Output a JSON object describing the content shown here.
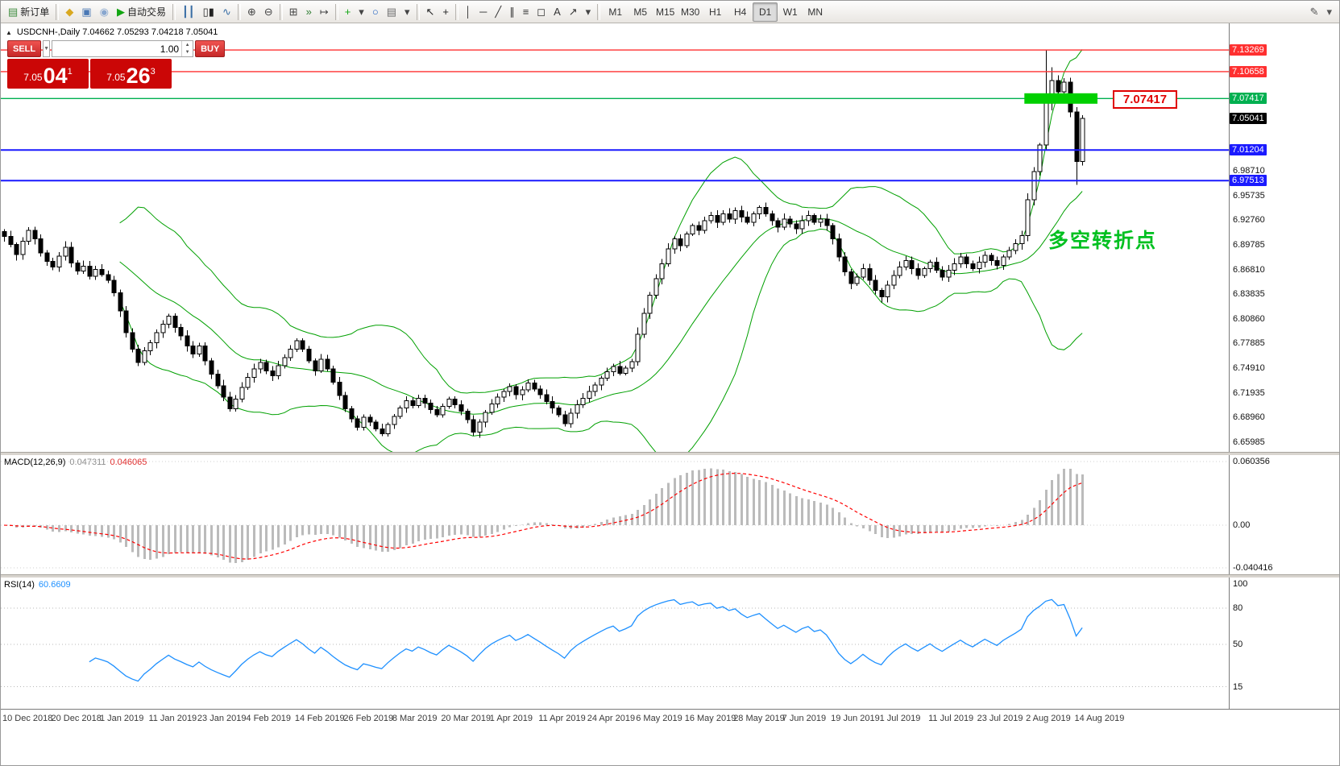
{
  "theme": {
    "bollinger": "#00A000",
    "candle_up_fill": "#FFFFFF",
    "candle_down_fill": "#000000",
    "candle_border": "#000000",
    "macd_hist": "#BBBBBB",
    "macd_signal": "#FF0000",
    "rsi_line": "#1E90FF",
    "res_line": "#FF3030",
    "sup_line": "#1A1AFF",
    "pivot_line": "#00B050",
    "pivot_fill": "#00D000",
    "tag_current_bg": "#000000",
    "annotation_green": "#00C020",
    "callout_red": "#E00000",
    "panel_red": "#CB0606"
  },
  "toolbar": {
    "items": [
      {
        "kind": "button",
        "name": "new-order-button",
        "glyph": "▤",
        "glyph_color": "#3c8b3c",
        "label": "新订单"
      },
      {
        "kind": "sep"
      },
      {
        "kind": "icon",
        "name": "market-icon",
        "glyph": "◆",
        "glyph_color": "#d9a820"
      },
      {
        "kind": "icon",
        "name": "charts-icon",
        "glyph": "▣",
        "glyph_color": "#4a78b5"
      },
      {
        "kind": "icon",
        "name": "community-icon",
        "glyph": "◉",
        "glyph_color": "#89a7cf"
      },
      {
        "kind": "button",
        "name": "autotrading-button",
        "glyph": "▶",
        "glyph_color": "#12a512",
        "label": "自动交易"
      },
      {
        "kind": "sep"
      },
      {
        "kind": "icon",
        "name": "ohlc-bars-chart-icon",
        "glyph": "┃┃",
        "glyph_color": "#3a6ea5"
      },
      {
        "kind": "icon",
        "name": "candlestick-chart-icon",
        "glyph": "▯▮",
        "glyph_color": "#222222"
      },
      {
        "kind": "icon",
        "name": "line-chart-icon",
        "glyph": "∿",
        "glyph_color": "#3a6ea5"
      },
      {
        "kind": "sep"
      },
      {
        "kind": "icon",
        "name": "zoom-in-icon",
        "glyph": "⊕",
        "glyph_color": "#444444"
      },
      {
        "kind": "icon",
        "name": "zoom-out-icon",
        "glyph": "⊖",
        "glyph_color": "#444444"
      },
      {
        "kind": "sep"
      },
      {
        "kind": "icon",
        "name": "tile-windows-icon",
        "glyph": "⊞",
        "glyph_color": "#444444"
      },
      {
        "kind": "icon",
        "name": "auto-scroll-icon",
        "glyph": "»",
        "glyph_color": "#2f7d32"
      },
      {
        "kind": "icon",
        "name": "chart-shift-icon",
        "glyph": "↦",
        "glyph_color": "#444444"
      },
      {
        "kind": "sep"
      },
      {
        "kind": "icon",
        "name": "add-indicator-icon",
        "glyph": "+",
        "glyph_color": "#12a512"
      },
      {
        "kind": "icon",
        "name": "indicator-list-dropdown-icon",
        "glyph": "▾",
        "glyph_color": "#444444"
      },
      {
        "kind": "icon",
        "name": "refresh-icon",
        "glyph": "○",
        "glyph_color": "#2060c0"
      },
      {
        "kind": "icon",
        "name": "templates-icon",
        "glyph": "▤",
        "glyph_color": "#6b6b6b"
      },
      {
        "kind": "icon",
        "name": "templates-dropdown-icon",
        "glyph": "▾",
        "glyph_color": "#444444"
      },
      {
        "kind": "sep"
      },
      {
        "kind": "icon",
        "name": "cursor-icon",
        "glyph": "↖",
        "glyph_color": "#222222"
      },
      {
        "kind": "icon",
        "name": "crosshair-icon",
        "glyph": "+",
        "glyph_color": "#222222"
      },
      {
        "kind": "sep"
      },
      {
        "kind": "icon",
        "name": "vertical-line-tool-icon",
        "glyph": "│",
        "glyph_color": "#333333"
      },
      {
        "kind": "icon",
        "name": "horizontal-line-tool-icon",
        "glyph": "─",
        "glyph_color": "#333333"
      },
      {
        "kind": "icon",
        "name": "trendline-tool-icon",
        "glyph": "╱",
        "glyph_color": "#333333"
      },
      {
        "kind": "icon",
        "name": "channel-tool-icon",
        "glyph": "∥",
        "glyph_color": "#333333"
      },
      {
        "kind": "icon",
        "name": "fibonacci-tool-icon",
        "glyph": "≡",
        "glyph_color": "#333333"
      },
      {
        "kind": "icon",
        "name": "shapes-tool-icon",
        "glyph": "◻",
        "glyph_color": "#333333"
      },
      {
        "kind": "icon",
        "name": "text-tool-icon",
        "glyph": "A",
        "glyph_color": "#333333"
      },
      {
        "kind": "icon",
        "name": "arrows-tool-icon",
        "glyph": "↗",
        "glyph_color": "#333333"
      },
      {
        "kind": "icon",
        "name": "objects-dropdown-icon",
        "glyph": "▾",
        "glyph_color": "#444444"
      },
      {
        "kind": "sep"
      },
      {
        "kind": "tf",
        "name": "timeframe-m1",
        "label": "M1"
      },
      {
        "kind": "tf",
        "name": "timeframe-m5",
        "label": "M5"
      },
      {
        "kind": "tf",
        "name": "timeframe-m15",
        "label": "M15"
      },
      {
        "kind": "tf",
        "name": "timeframe-m30",
        "label": "M30"
      },
      {
        "kind": "tf",
        "name": "timeframe-h1",
        "label": "H1"
      },
      {
        "kind": "tf",
        "name": "timeframe-h4",
        "label": "H4"
      },
      {
        "kind": "tf",
        "name": "timeframe-d1",
        "label": "D1",
        "active": true
      },
      {
        "kind": "tf",
        "name": "timeframe-w1",
        "label": "W1"
      },
      {
        "kind": "tf",
        "name": "timeframe-mn",
        "label": "MN"
      },
      {
        "kind": "spacer"
      },
      {
        "kind": "icon",
        "name": "edit-icon",
        "glyph": "✎",
        "glyph_color": "#555555"
      },
      {
        "kind": "icon",
        "name": "window-menu-icon",
        "glyph": "▾",
        "glyph_color": "#555555"
      }
    ]
  },
  "symbol_header": {
    "toggle_glyph": "▲"
  },
  "trade_panel": {
    "sell_label": "SELL",
    "buy_label": "BUY",
    "volume": "1.00",
    "sell_price_main": "7.05",
    "sell_price_pips": "04",
    "sell_price_sup": "1",
    "buy_price_main": "7.05",
    "buy_price_pips": "26",
    "buy_price_sup": "3"
  },
  "annotation": {
    "text": "多空转折点"
  },
  "callout": {
    "text": "7.07417"
  },
  "chart_data": [
    {
      "id": "price",
      "type": "candlestick",
      "symbol": "USDCNH-",
      "timeframe": "Daily",
      "header": "USDCNH-,Daily  7.04662 7.05293 7.04218 7.05041",
      "current_bar": {
        "open": 7.04662,
        "high": 7.05293,
        "low": 7.04218,
        "close": 7.05041
      },
      "bid": 7.05041,
      "ask": 7.05263,
      "visible_price_range": [
        6.64,
        7.165
      ],
      "overlays": {
        "bollinger": {
          "period": 20,
          "deviation": 2
        }
      },
      "closes": [
        6.908,
        6.898,
        6.886,
        6.902,
        6.915,
        6.905,
        6.888,
        6.878,
        6.871,
        6.884,
        6.895,
        6.876,
        6.866,
        6.872,
        6.86,
        6.868,
        6.862,
        6.855,
        6.84,
        6.818,
        6.792,
        6.772,
        6.756,
        6.77,
        6.78,
        6.792,
        6.802,
        6.812,
        6.798,
        6.788,
        6.776,
        6.766,
        6.776,
        6.758,
        6.742,
        6.728,
        6.714,
        6.7,
        6.712,
        6.726,
        6.738,
        6.748,
        6.756,
        6.746,
        6.74,
        6.752,
        6.762,
        6.772,
        6.782,
        6.772,
        6.758,
        6.746,
        6.76,
        6.748,
        6.732,
        6.716,
        6.7,
        6.688,
        6.678,
        6.69,
        6.684,
        6.676,
        6.67,
        6.681,
        6.691,
        6.701,
        6.71,
        6.704,
        6.713,
        6.707,
        6.699,
        6.693,
        6.703,
        6.712,
        6.705,
        6.697,
        6.687,
        6.672,
        6.684,
        6.696,
        6.706,
        6.714,
        6.721,
        6.727,
        6.717,
        6.723,
        6.731,
        6.724,
        6.717,
        6.709,
        6.701,
        6.693,
        6.682,
        6.695,
        6.705,
        6.713,
        6.721,
        6.729,
        6.737,
        6.745,
        6.751,
        6.743,
        6.749,
        6.757,
        6.79,
        6.815,
        6.837,
        6.857,
        6.875,
        6.893,
        6.905,
        6.897,
        6.911,
        6.921,
        6.915,
        6.927,
        6.933,
        6.925,
        6.935,
        6.929,
        6.939,
        6.931,
        6.925,
        6.935,
        6.943,
        6.935,
        6.927,
        6.919,
        6.929,
        6.923,
        6.917,
        6.927,
        6.933,
        6.925,
        6.929,
        6.921,
        6.905,
        6.883,
        6.865,
        6.851,
        6.859,
        6.869,
        6.855,
        6.843,
        6.835,
        6.849,
        6.861,
        6.871,
        6.879,
        6.869,
        6.861,
        6.869,
        6.877,
        6.867,
        6.859,
        6.867,
        6.875,
        6.883,
        6.875,
        6.869,
        6.877,
        6.885,
        6.879,
        6.873,
        6.883,
        6.891,
        6.899,
        6.909,
        6.952,
        6.986,
        7.018,
        7.072,
        7.096,
        7.082,
        7.094,
        7.058,
        6.998,
        7.05
      ],
      "wick_overrides": {
        "104": [
          6.798,
          6.752
        ],
        "168": [
          6.96,
          6.902
        ],
        "171": [
          7.132,
          7.012
        ],
        "172": [
          7.112,
          7.06
        ],
        "176": [
          7.064,
          6.97
        ]
      },
      "hlines": [
        {
          "name": "resistance-line-1",
          "price": 7.13269,
          "color_key": "res_line",
          "width": 1.4
        },
        {
          "name": "resistance-line-2",
          "price": 7.10658,
          "color_key": "res_line",
          "width": 1.4
        },
        {
          "name": "pivot-line",
          "price": 7.07417,
          "color_key": "pivot_line",
          "width": 1.4
        },
        {
          "name": "support-line-1",
          "price": 7.01204,
          "color_key": "sup_line",
          "width": 2
        },
        {
          "name": "support-line-2",
          "price": 6.97513,
          "color_key": "sup_line",
          "width": 2
        }
      ],
      "pivot_segment": {
        "price": 7.07417,
        "from_index": 167.5,
        "to_index": 179.5
      },
      "axis_plain_labels": [
        "6.98710",
        "6.95735",
        "6.92760",
        "6.89785",
        "6.86810",
        "6.83835",
        "6.80860",
        "6.77885",
        "6.74910",
        "6.71935",
        "6.68960",
        "6.65985"
      ],
      "axis_tags": [
        {
          "text": "7.13269",
          "bg": "#FF3030"
        },
        {
          "text": "7.10658",
          "bg": "#FF3030"
        },
        {
          "text": "7.07417",
          "bg": "#00B050"
        },
        {
          "text": "7.05041",
          "bg": "#000000"
        },
        {
          "text": "7.01204",
          "bg": "#1A1AFF"
        },
        {
          "text": "6.97513",
          "bg": "#1A1AFF"
        }
      ],
      "date_labels": [
        "10 Dec 2018",
        "20 Dec 2018",
        "1 Jan 2019",
        "11 Jan 2019",
        "23 Jan 2019",
        "4 Feb 2019",
        "14 Feb 2019",
        "26 Feb 2019",
        "8 Mar 2019",
        "20 Mar 2019",
        "1 Apr 2019",
        "11 Apr 2019",
        "24 Apr 2019",
        "6 May 2019",
        "16 May 2019",
        "28 May 2019",
        "7 Jun 2019",
        "19 Jun 2019",
        "1 Jul 2019",
        "11 Jul 2019",
        "23 Jul 2019",
        "2 Aug 2019",
        "14 Aug 2019"
      ]
    },
    {
      "id": "macd",
      "type": "histogram+line",
      "title": "MACD(12,26,9)",
      "value_main": "0.047311",
      "value_signal": "0.046065",
      "params": {
        "fast": 12,
        "slow": 26,
        "signal": 9
      },
      "axis_ticks": [
        "0.060356",
        "0.00",
        "-0.040416"
      ],
      "range": [
        -0.040416,
        0.060356
      ]
    },
    {
      "id": "rsi",
      "type": "line",
      "title": "RSI(14)",
      "value": "60.6609",
      "period": 14,
      "levels": [
        80,
        50,
        15
      ],
      "axis_ticks": [
        "100",
        "80",
        "50",
        "15"
      ],
      "range": [
        0,
        100
      ]
    }
  ]
}
